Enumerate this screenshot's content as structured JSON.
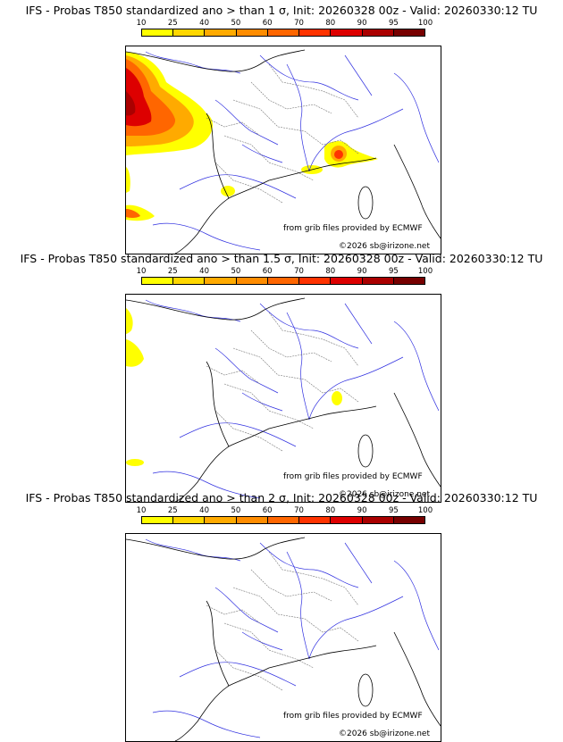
{
  "legend": {
    "ticks": [
      "10",
      "25",
      "40",
      "50",
      "60",
      "70",
      "80",
      "90",
      "95",
      "100"
    ],
    "colors": [
      "#ffff00",
      "#ffd700",
      "#ffaa00",
      "#ff8c00",
      "#ff6600",
      "#ff3300",
      "#dd0000",
      "#aa0000",
      "#770000"
    ]
  },
  "panels": [
    {
      "title": "IFS - Probas T850  standardized ano > than 1 σ, Init: 20260328 00z - Valid: 20260330:12 TU"
    },
    {
      "title": "IFS - Probas T850  standardized ano > than 1.5 σ, Init: 20260328 00z - Valid: 20260330:12 TU"
    },
    {
      "title": "IFS - Probas T850  standardized ano > than 2 σ, Init: 20260328 00z - Valid: 20260330:12 TU"
    }
  ],
  "credit": {
    "source": "from grib files provided by ECMWF",
    "copyright": "©2026 sb@irizone.net"
  }
}
